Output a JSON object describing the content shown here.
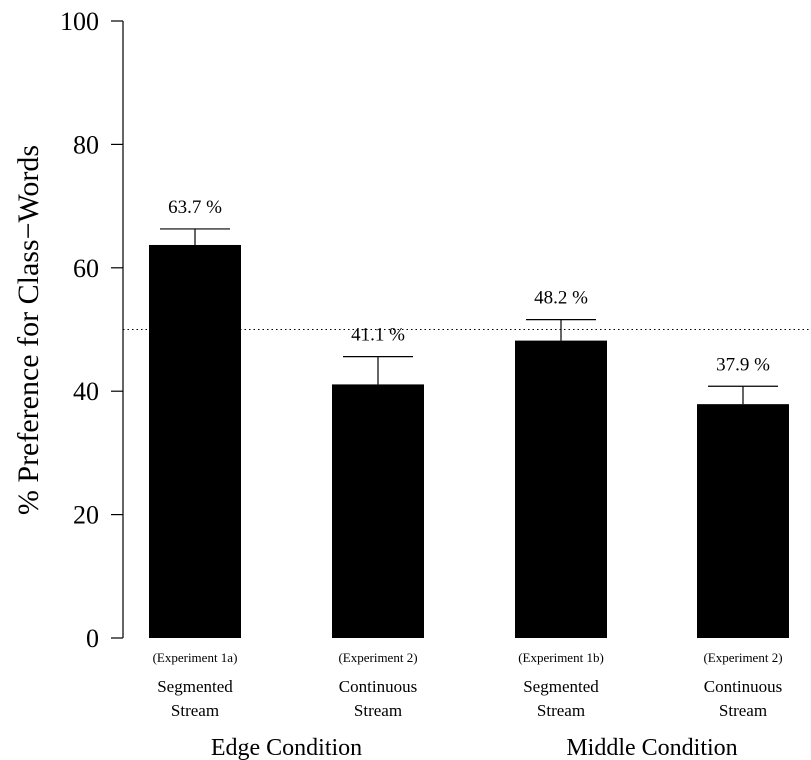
{
  "chart_data": {
    "type": "bar",
    "ylabel": "% Preference for Class−Words",
    "ylim": [
      0,
      100
    ],
    "yticks": [
      0,
      20,
      40,
      60,
      80,
      100
    ],
    "reference_line": 50,
    "bar_color": "#000000",
    "categories": [
      {
        "experiment": "(Experiment 1a)",
        "line1": "Segmented",
        "line2": "Stream",
        "value": 63.7,
        "error_upper": 66.3,
        "label": "63.7 %"
      },
      {
        "experiment": "(Experiment 2)",
        "line1": "Continuous",
        "line2": "Stream",
        "value": 41.1,
        "error_upper": 45.6,
        "label": "41.1 %"
      },
      {
        "experiment": "(Experiment 1b)",
        "line1": "Segmented",
        "line2": "Stream",
        "value": 48.2,
        "error_upper": 51.6,
        "label": "48.2 %"
      },
      {
        "experiment": "(Experiment 2)",
        "line1": "Continuous",
        "line2": "Stream",
        "value": 37.9,
        "error_upper": 40.8,
        "label": "37.9 %"
      }
    ],
    "groups": [
      {
        "label": "Edge Condition"
      },
      {
        "label": "Middle Condition"
      }
    ]
  }
}
